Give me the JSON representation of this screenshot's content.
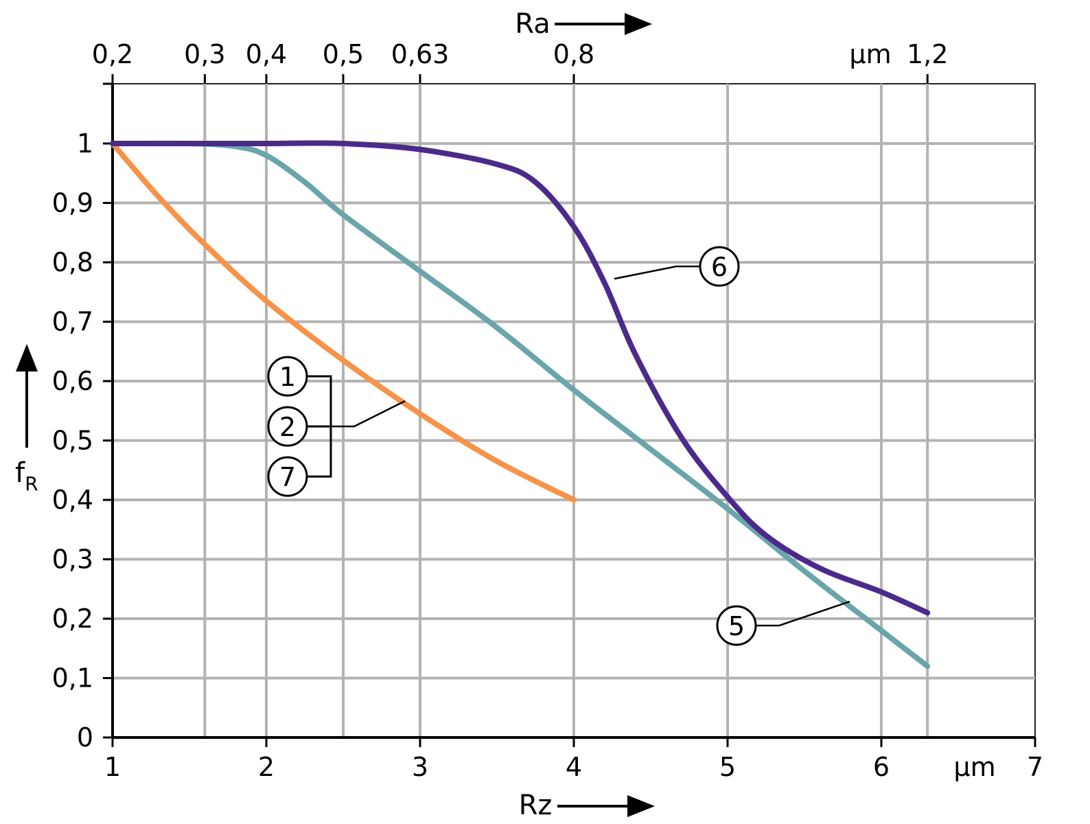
{
  "chart_data": {
    "type": "line",
    "x_axis_bottom": {
      "label": "Rz",
      "unit": "µm",
      "range": [
        1,
        7
      ],
      "ticks": [
        "1",
        "2",
        "3",
        "4",
        "5",
        "6",
        "7"
      ]
    },
    "x_axis_top": {
      "label": "Ra",
      "unit": "µm",
      "ticks": [
        {
          "rz": 1,
          "label": "0,2"
        },
        {
          "rz": 1.6,
          "label": "0,3"
        },
        {
          "rz": 2,
          "label": "0,4"
        },
        {
          "rz": 2.5,
          "label": "0,5"
        },
        {
          "rz": 3,
          "label": "0,63"
        },
        {
          "rz": 4,
          "label": "0,8"
        },
        {
          "rz": 6.3,
          "label": "1,2"
        }
      ]
    },
    "y_axis": {
      "label": "f",
      "label_sub": "R",
      "range": [
        0,
        1.1
      ],
      "ticks": [
        {
          "value": 0,
          "label": "0"
        },
        {
          "value": 0.1,
          "label": "0,1"
        },
        {
          "value": 0.2,
          "label": "0,2"
        },
        {
          "value": 0.3,
          "label": "0,3"
        },
        {
          "value": 0.4,
          "label": "0,4"
        },
        {
          "value": 0.5,
          "label": "0,5"
        },
        {
          "value": 0.6,
          "label": "0,6"
        },
        {
          "value": 0.7,
          "label": "0,7"
        },
        {
          "value": 0.8,
          "label": "0,8"
        },
        {
          "value": 0.9,
          "label": "0,9"
        },
        {
          "value": 1.0,
          "label": "1"
        }
      ]
    },
    "grid": true,
    "series": [
      {
        "curve_id": "orange",
        "callouts": [
          "1",
          "2",
          "7"
        ],
        "color": "#f5934a",
        "points": [
          [
            1,
            1.0
          ],
          [
            1.3,
            0.91
          ],
          [
            1.6,
            0.83
          ],
          [
            2,
            0.735
          ],
          [
            2.5,
            0.635
          ],
          [
            3,
            0.545
          ],
          [
            3.5,
            0.465
          ],
          [
            4,
            0.4
          ]
        ]
      },
      {
        "curve_id": "teal",
        "callouts": [
          "5"
        ],
        "color": "#6aa5aa",
        "points": [
          [
            1,
            1.0
          ],
          [
            1.5,
            1.0
          ],
          [
            1.8,
            0.995
          ],
          [
            2,
            0.98
          ],
          [
            2.25,
            0.935
          ],
          [
            2.5,
            0.88
          ],
          [
            3,
            0.785
          ],
          [
            3.5,
            0.69
          ],
          [
            4,
            0.585
          ],
          [
            4.5,
            0.485
          ],
          [
            5,
            0.385
          ],
          [
            5.5,
            0.28
          ],
          [
            6,
            0.18
          ],
          [
            6.3,
            0.12
          ]
        ]
      },
      {
        "curve_id": "purple",
        "callouts": [
          "6"
        ],
        "color": "#4b2a8a",
        "points": [
          [
            1,
            1.0
          ],
          [
            1.5,
            1.0
          ],
          [
            2,
            1.0
          ],
          [
            2.5,
            1.0
          ],
          [
            3,
            0.99
          ],
          [
            3.5,
            0.965
          ],
          [
            3.75,
            0.935
          ],
          [
            4,
            0.86
          ],
          [
            4.2,
            0.765
          ],
          [
            4.4,
            0.645
          ],
          [
            4.7,
            0.505
          ],
          [
            5,
            0.405
          ],
          [
            5.25,
            0.34
          ],
          [
            5.6,
            0.285
          ],
          [
            6,
            0.245
          ],
          [
            6.3,
            0.21
          ]
        ]
      }
    ],
    "callout_labels": [
      {
        "number": "1",
        "series": "orange"
      },
      {
        "number": "2",
        "series": "orange"
      },
      {
        "number": "7",
        "series": "orange"
      },
      {
        "number": "6",
        "series": "purple"
      },
      {
        "number": "5",
        "series": "teal"
      }
    ]
  }
}
